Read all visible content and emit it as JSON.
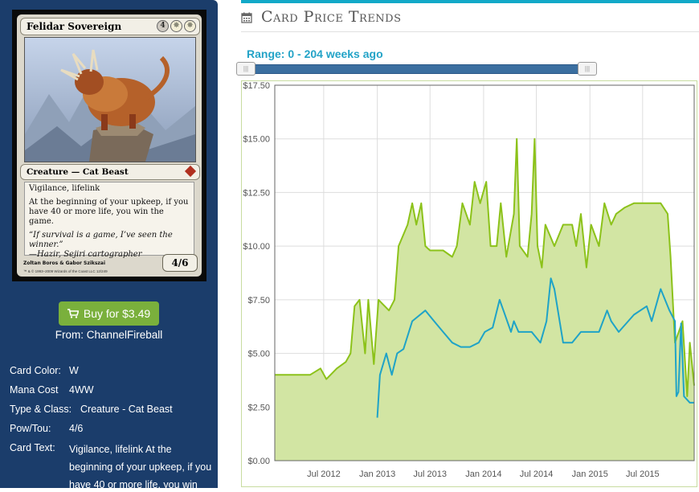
{
  "card": {
    "name": "Felidar Sovereign",
    "mana_cost_symbols": [
      "4",
      "W",
      "W"
    ],
    "type_line": "Creature — Cat Beast",
    "rules_text": "Vigilance, lifelink",
    "rules_text_2": "At the beginning of your upkeep, if you have 40 or more life, you win the game.",
    "flavor_text": "“If survival is a game, I’ve seen the winner.”",
    "flavor_attribution": "—Hazir, Sejiri cartographer",
    "power_toughness": "4/6",
    "artist": "Zoltan Boros & Gabor Szikszai",
    "copyright": "™ & © 1993–2009 Wizards of the Coast LLC 12/249"
  },
  "buy": {
    "label": "Buy for $3.49",
    "from": "From: ChannelFireball"
  },
  "info": [
    {
      "label": "Card Color:",
      "value": "W"
    },
    {
      "label": "Mana Cost",
      "value": "4WW"
    },
    {
      "label": "Type & Class:",
      "value": "Creature - Cat Beast"
    },
    {
      "label": "Pow/Tou:",
      "value": "4/6"
    }
  ],
  "card_text_label": "Card Text:",
  "card_text_value": "Vigilance, lifelink At the beginning of your upkeep, if you have 40 or more life, you win",
  "header": {
    "title": "Card Price Trends",
    "icon": "calendar-icon",
    "accent": "#12a9c8"
  },
  "range": {
    "label": "Range: 0 - 204 weeks ago",
    "max_weeks": 204,
    "start_weeks_ago": 204,
    "end_weeks_ago": 0
  },
  "chart_data": {
    "type": "area",
    "title": "",
    "xlabel": "",
    "ylabel": "",
    "x_tick_labels": [
      "Jul 2012",
      "Jan 2013",
      "Jul 2013",
      "Jan 2014",
      "Jul 2014",
      "Jan 2015",
      "Jul 2015"
    ],
    "y_tick_labels": [
      "$0.00",
      "$2.50",
      "$5.00",
      "$7.50",
      "$10.00",
      "$12.50",
      "$15.00",
      "$17.50"
    ],
    "ylim": [
      0,
      17.5
    ],
    "xlim": [
      "2012-01-15",
      "2015-12-25"
    ],
    "grid": true,
    "colors": {
      "fill": "#d2e5a3",
      "green": "#8cc21a",
      "blue": "#1fa3c7",
      "border": "#c8dca0"
    },
    "series": [
      {
        "color": "#8cc21a",
        "fill": true,
        "points": [
          [
            "2012-01-15",
            4.0
          ],
          [
            "2012-05-15",
            4.0
          ],
          [
            "2012-06-20",
            4.3
          ],
          [
            "2012-07-10",
            3.8
          ],
          [
            "2012-08-15",
            4.3
          ],
          [
            "2012-09-15",
            4.6
          ],
          [
            "2012-10-01",
            5.0
          ],
          [
            "2012-10-15",
            7.2
          ],
          [
            "2012-11-01",
            7.5
          ],
          [
            "2012-11-20",
            5.0
          ],
          [
            "2012-12-01",
            7.5
          ],
          [
            "2012-12-20",
            4.5
          ],
          [
            "2013-01-05",
            7.5
          ],
          [
            "2013-02-10",
            7.0
          ],
          [
            "2013-03-01",
            7.5
          ],
          [
            "2013-03-15",
            10.0
          ],
          [
            "2013-04-15",
            11.0
          ],
          [
            "2013-05-01",
            12.0
          ],
          [
            "2013-05-15",
            11.0
          ],
          [
            "2013-06-01",
            12.0
          ],
          [
            "2013-06-15",
            10.0
          ],
          [
            "2013-07-01",
            9.8
          ],
          [
            "2013-08-15",
            9.8
          ],
          [
            "2013-09-15",
            9.5
          ],
          [
            "2013-10-01",
            10.0
          ],
          [
            "2013-10-20",
            12.0
          ],
          [
            "2013-11-15",
            11.0
          ],
          [
            "2013-12-01",
            13.0
          ],
          [
            "2013-12-20",
            12.0
          ],
          [
            "2014-01-10",
            13.0
          ],
          [
            "2014-01-25",
            10.0
          ],
          [
            "2014-02-15",
            10.0
          ],
          [
            "2014-03-01",
            12.0
          ],
          [
            "2014-03-20",
            9.5
          ],
          [
            "2014-04-15",
            11.5
          ],
          [
            "2014-04-25",
            15.0
          ],
          [
            "2014-05-05",
            10.0
          ],
          [
            "2014-06-01",
            9.5
          ],
          [
            "2014-06-15",
            11.5
          ],
          [
            "2014-06-25",
            15.0
          ],
          [
            "2014-07-05",
            10.0
          ],
          [
            "2014-07-20",
            9.0
          ],
          [
            "2014-08-01",
            11.0
          ],
          [
            "2014-09-01",
            10.0
          ],
          [
            "2014-10-01",
            11.0
          ],
          [
            "2014-11-01",
            11.0
          ],
          [
            "2014-11-15",
            10.0
          ],
          [
            "2014-12-01",
            11.5
          ],
          [
            "2014-12-20",
            9.0
          ],
          [
            "2015-01-05",
            11.0
          ],
          [
            "2015-02-01",
            10.0
          ],
          [
            "2015-02-20",
            12.0
          ],
          [
            "2015-03-15",
            11.0
          ],
          [
            "2015-04-01",
            11.5
          ],
          [
            "2015-05-01",
            11.8
          ],
          [
            "2015-06-01",
            12.0
          ],
          [
            "2015-09-01",
            12.0
          ],
          [
            "2015-09-25",
            11.5
          ],
          [
            "2015-10-05",
            9.5
          ],
          [
            "2015-10-20",
            5.5
          ],
          [
            "2015-11-15",
            6.5
          ],
          [
            "2015-12-01",
            3.0
          ],
          [
            "2015-12-10",
            5.5
          ],
          [
            "2015-12-25",
            3.5
          ]
        ]
      },
      {
        "color": "#1fa3c7",
        "fill": false,
        "points": [
          [
            "2013-01-01",
            2.0
          ],
          [
            "2013-01-10",
            4.0
          ],
          [
            "2013-02-01",
            5.0
          ],
          [
            "2013-02-20",
            4.0
          ],
          [
            "2013-03-10",
            5.0
          ],
          [
            "2013-04-01",
            5.2
          ],
          [
            "2013-05-01",
            6.5
          ],
          [
            "2013-06-15",
            7.0
          ],
          [
            "2013-07-15",
            6.5
          ],
          [
            "2013-08-15",
            6.0
          ],
          [
            "2013-09-15",
            5.5
          ],
          [
            "2013-10-15",
            5.3
          ],
          [
            "2013-11-15",
            5.3
          ],
          [
            "2013-12-15",
            5.5
          ],
          [
            "2014-01-05",
            6.0
          ],
          [
            "2014-02-01",
            6.2
          ],
          [
            "2014-02-25",
            7.5
          ],
          [
            "2014-03-10",
            7.0
          ],
          [
            "2014-04-05",
            6.0
          ],
          [
            "2014-04-15",
            6.5
          ],
          [
            "2014-05-01",
            6.0
          ],
          [
            "2014-06-15",
            6.0
          ],
          [
            "2014-07-15",
            5.5
          ],
          [
            "2014-08-05",
            6.5
          ],
          [
            "2014-08-20",
            8.5
          ],
          [
            "2014-09-01",
            8.0
          ],
          [
            "2014-10-01",
            5.5
          ],
          [
            "2014-11-01",
            5.5
          ],
          [
            "2014-12-01",
            6.0
          ],
          [
            "2015-01-05",
            6.0
          ],
          [
            "2015-02-01",
            6.0
          ],
          [
            "2015-03-01",
            7.0
          ],
          [
            "2015-03-15",
            6.5
          ],
          [
            "2015-04-10",
            6.0
          ],
          [
            "2015-06-01",
            6.8
          ],
          [
            "2015-07-15",
            7.2
          ],
          [
            "2015-08-01",
            6.5
          ],
          [
            "2015-09-01",
            8.0
          ],
          [
            "2015-10-01",
            7.0
          ],
          [
            "2015-10-20",
            6.5
          ],
          [
            "2015-10-25",
            3.0
          ],
          [
            "2015-11-01",
            3.2
          ],
          [
            "2015-11-10",
            6.4
          ],
          [
            "2015-11-20",
            3.0
          ],
          [
            "2015-12-10",
            2.7
          ],
          [
            "2015-12-25",
            2.7
          ]
        ]
      }
    ]
  }
}
